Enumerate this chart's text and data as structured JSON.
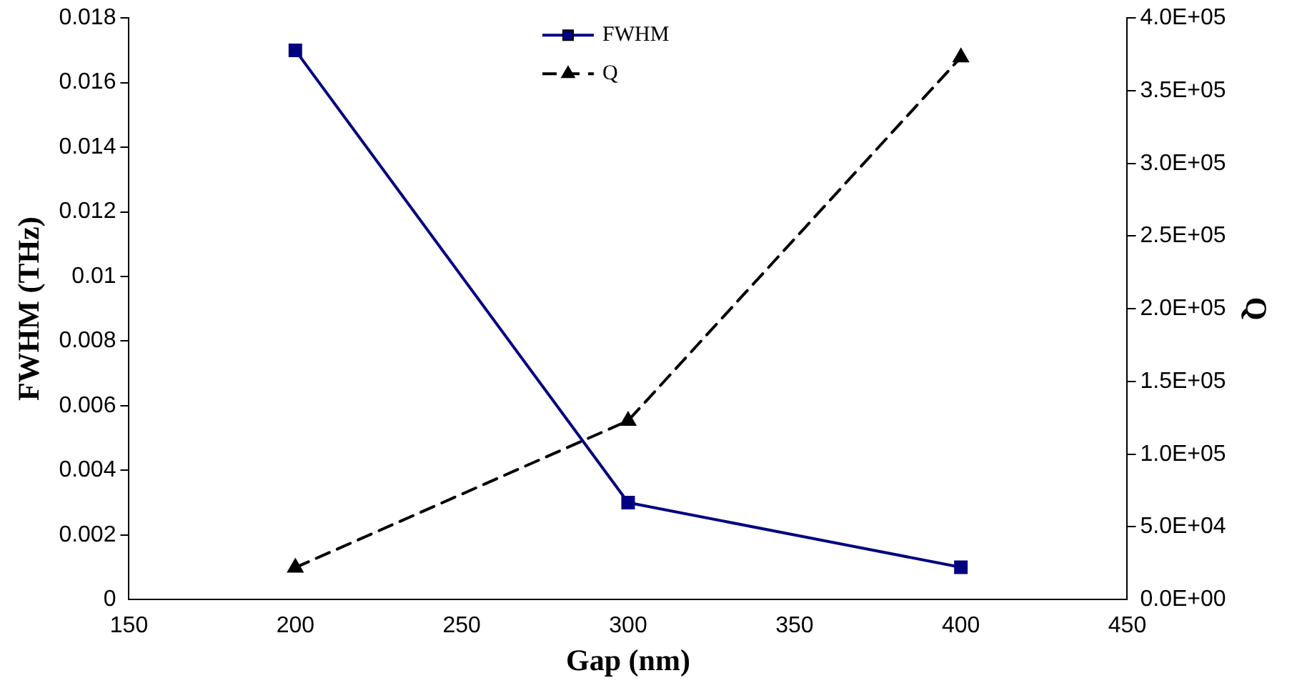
{
  "chart_data": {
    "type": "line",
    "xlabel": "Gap (nm)",
    "ylabel": "FWHM (THz)",
    "y2label": "Q",
    "x": [
      200,
      300,
      400
    ],
    "series": [
      {
        "name": "FWHM",
        "color": "#000080",
        "values": [
          0.017,
          0.003,
          0.001
        ],
        "marker": "square",
        "line_style": "solid"
      },
      {
        "name": "Q",
        "color": "#000000",
        "values": [
          22000,
          123000,
          373000
        ],
        "axis": "y2",
        "marker": "triangle",
        "line_style": "dashed"
      }
    ],
    "xlim": [
      150,
      450
    ],
    "xticks": [
      150,
      200,
      250,
      300,
      350,
      400,
      450
    ],
    "ylim": [
      0,
      0.018
    ],
    "yticks": [
      0,
      0.002,
      0.004,
      0.006,
      0.008,
      0.01,
      0.012,
      0.014,
      0.016,
      0.018
    ],
    "y2lim": [
      0,
      400000
    ],
    "y2ticks": [
      {
        "value": 0,
        "label": "0.0E+00"
      },
      {
        "value": 50000,
        "label": "5.0E+04"
      },
      {
        "value": 100000,
        "label": "1.0E+05"
      },
      {
        "value": 150000,
        "label": "1.5E+05"
      },
      {
        "value": 200000,
        "label": "2.0E+05"
      },
      {
        "value": 250000,
        "label": "2.5E+05"
      },
      {
        "value": 300000,
        "label": "3.0E+05"
      },
      {
        "value": 350000,
        "label": "3.5E+05"
      },
      {
        "value": 400000,
        "label": "4.0E+05"
      }
    ],
    "grid": false,
    "legend": "top"
  }
}
